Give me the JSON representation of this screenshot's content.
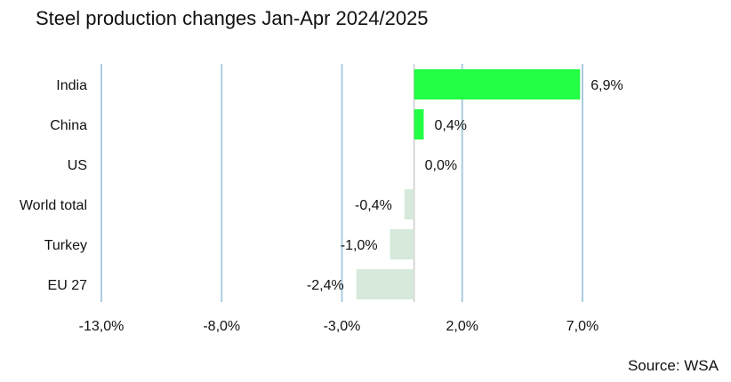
{
  "title": "Steel production changes Jan-Apr 2024/2025",
  "source": "Source: WSA",
  "colors": {
    "positive": "#22ff44",
    "negative": "#d6e9da",
    "gridline": "#aacde0",
    "zero_line": "#c9c9c9",
    "text": "#111111"
  },
  "chart_data": {
    "type": "bar",
    "orientation": "horizontal",
    "title": "Steel production changes Jan-Apr 2024/2025",
    "xlabel": "",
    "ylabel": "",
    "unit": "%",
    "categories": [
      "India",
      "China",
      "US",
      "World total",
      "Turkey",
      "EU 27"
    ],
    "values": [
      6.9,
      0.4,
      0.0,
      -0.4,
      -1.0,
      -2.4
    ],
    "value_labels": [
      "6,9%",
      "0,4%",
      "0,0%",
      "-0,4%",
      "-1,0%",
      "-2,4%"
    ],
    "xlim": [
      -13.0,
      7.0
    ],
    "xticks": [
      -13.0,
      -8.0,
      -3.0,
      2.0,
      7.0
    ],
    "xtick_labels": [
      "-13,0%",
      "-8,0%",
      "-3,0%",
      "2,0%",
      "7,0%"
    ],
    "grid": true,
    "legend": "none",
    "source": "Source: WSA"
  }
}
